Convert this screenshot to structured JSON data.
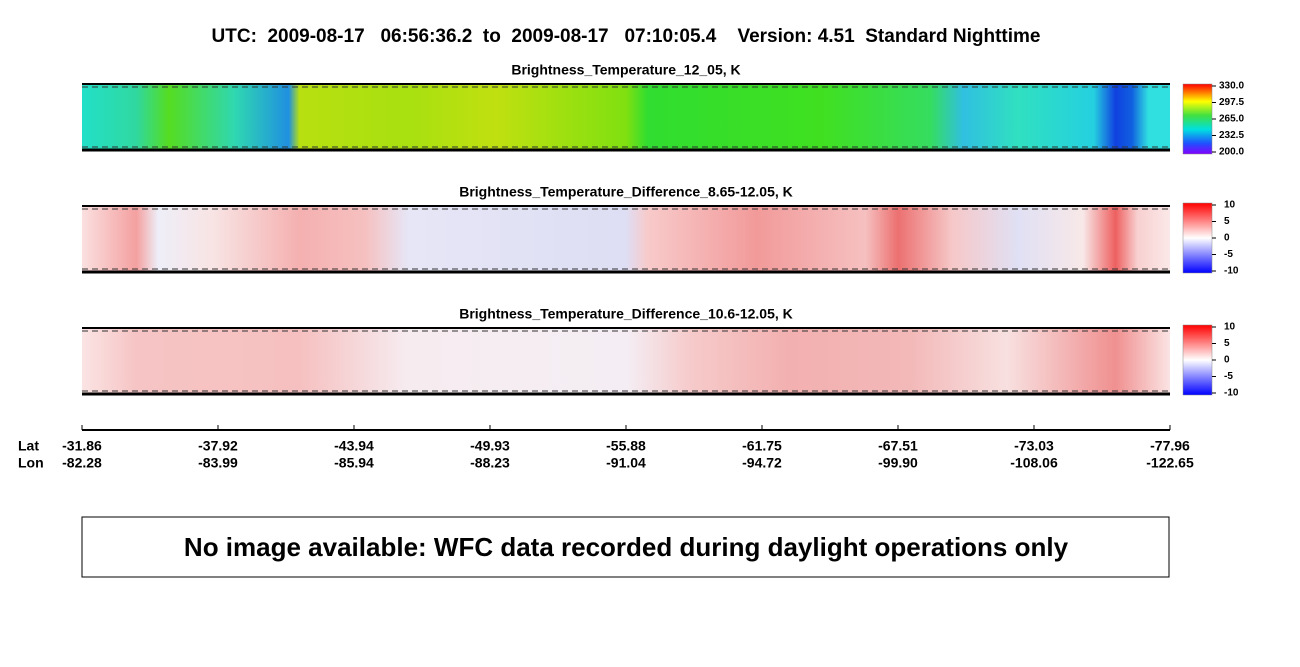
{
  "header": {
    "title": "UTC:  2009-08-17   06:56:36.2  to  2009-08-17   07:10:05.4    Version: 4.51  Standard Nighttime"
  },
  "panels": [
    {
      "title": "Brightness_Temperature_12_05, K",
      "colorbar_ticks": [
        "330.0",
        "297.5",
        "265.0",
        "232.5",
        "200.0"
      ]
    },
    {
      "title": "Brightness_Temperature_Difference_8.65-12.05, K",
      "colorbar_ticks": [
        "10",
        "5",
        "0",
        "-5",
        "-10"
      ]
    },
    {
      "title": "Brightness_Temperature_Difference_10.6-12.05, K",
      "colorbar_ticks": [
        "10",
        "5",
        "0",
        "-5",
        "-10"
      ]
    }
  ],
  "axis": {
    "lat_label": "Lat",
    "lon_label": "Lon",
    "lat": [
      "-31.86",
      "-37.92",
      "-43.94",
      "-49.93",
      "-55.88",
      "-61.75",
      "-67.51",
      "-73.03",
      "-77.96"
    ],
    "lon": [
      "-82.28",
      "-83.99",
      "-85.94",
      "-88.23",
      "-91.04",
      "-94.72",
      "-99.90",
      "-108.06",
      "-122.65"
    ]
  },
  "message": "No image available: WFC data recorded during daylight operations only"
}
